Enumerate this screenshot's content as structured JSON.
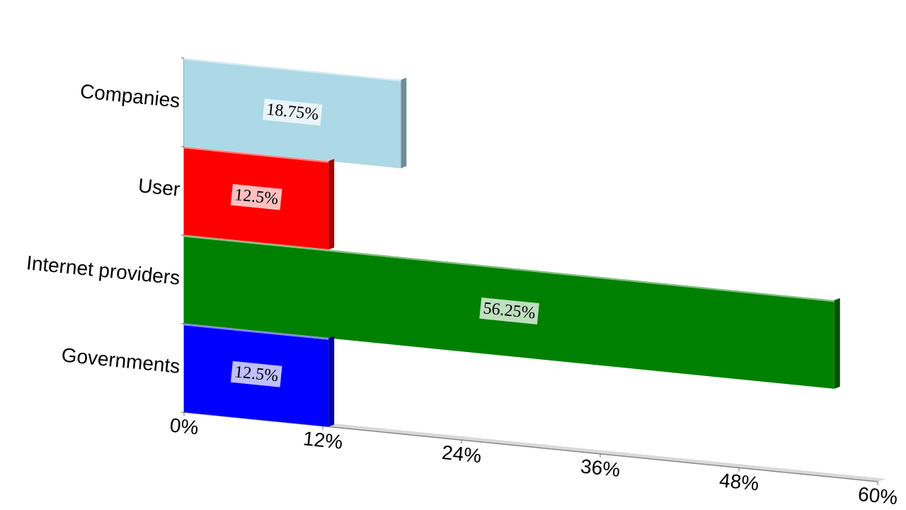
{
  "chart_data": {
    "type": "bar",
    "categories": [
      "Companies",
      "User",
      "Internet providers",
      "Governments"
    ],
    "values": [
      18.75,
      12.5,
      56.25,
      12.5
    ],
    "value_labels": [
      "18.75%",
      "12.5%",
      "56.25%",
      "12.5%"
    ],
    "colors": [
      "#add8e6",
      "#ff0000",
      "#008000",
      "#0000ff"
    ],
    "xlim": [
      0,
      60
    ],
    "xticks": [
      {
        "value": 0,
        "label": "0%"
      },
      {
        "value": 12,
        "label": "12%"
      },
      {
        "value": 24,
        "label": "24%"
      },
      {
        "value": 36,
        "label": "36%"
      },
      {
        "value": 48,
        "label": "48%"
      },
      {
        "value": 60,
        "label": "60%"
      }
    ]
  }
}
